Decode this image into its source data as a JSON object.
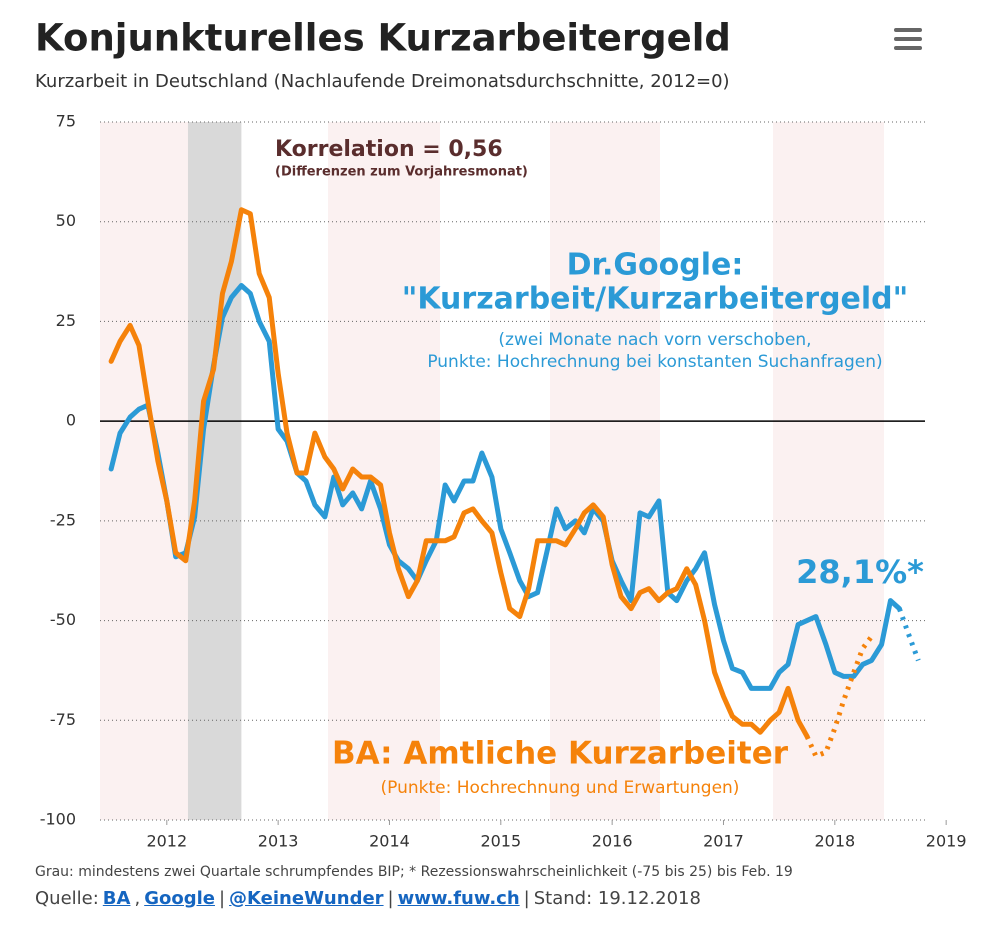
{
  "chart_data": {
    "type": "line",
    "title": "Konjunkturelles Kurzarbeitergeld",
    "subtitle": "Kurzarbeit in Deutschland (Nachlaufende Dreimonatsdurchschnitte, 2012=0)",
    "xlim": [
      2011.4,
      2018.81
    ],
    "xticks": [
      2012,
      2013,
      2014,
      2015,
      2016,
      2017,
      2018,
      2019
    ],
    "ylim": [
      -100,
      75
    ],
    "yticks": [
      75,
      50,
      25,
      0,
      -25,
      -50,
      -75,
      -100
    ],
    "grid": true,
    "shaded": [
      2012.19,
      2012.67
    ],
    "series": [
      {
        "color": "#2b9ad6",
        "style": "solid",
        "x": [
          2011.5,
          2011.58,
          2011.67,
          2011.75,
          2011.83,
          2011.92,
          2012,
          2012.08,
          2012.17,
          2012.25,
          2012.33,
          2012.42,
          2012.5,
          2012.58,
          2012.67,
          2012.75,
          2012.83,
          2012.92,
          2013,
          2013.08,
          2013.17,
          2013.25,
          2013.33,
          2013.42,
          2013.5,
          2013.58,
          2013.67,
          2013.75,
          2013.83,
          2013.92,
          2014,
          2014.08,
          2014.17,
          2014.25,
          2014.33,
          2014.42,
          2014.5,
          2014.58,
          2014.67,
          2014.75,
          2014.83,
          2014.92,
          2015,
          2015.08,
          2015.17,
          2015.25,
          2015.33,
          2015.42,
          2015.5,
          2015.58,
          2015.67,
          2015.75,
          2015.83,
          2015.92,
          2016,
          2016.08,
          2016.17,
          2016.25,
          2016.33,
          2016.42,
          2016.5,
          2016.58,
          2016.67,
          2016.75,
          2016.83,
          2016.92,
          2017,
          2017.08,
          2017.17,
          2017.25,
          2017.33,
          2017.42,
          2017.5,
          2017.58,
          2017.67,
          2017.75,
          2017.83,
          2017.92,
          2018,
          2018.08,
          2018.17,
          2018.25,
          2018.33,
          2018.42,
          2018.5,
          2018.58
        ],
        "values": [
          -12,
          -3,
          1,
          3,
          4,
          -8,
          -20,
          -34,
          -33,
          -24,
          -2,
          14,
          26,
          31,
          34,
          32,
          25,
          20,
          -2,
          -5,
          -13,
          -15,
          -21,
          -24,
          -14,
          -21,
          -18,
          -22,
          -15,
          -22,
          -31,
          -35,
          -37,
          -40,
          -35,
          -30,
          -16,
          -20,
          -15,
          -15,
          -8,
          -14,
          -27,
          -33,
          -40,
          -44,
          -43,
          -32,
          -22,
          -27,
          -25,
          -28,
          -22,
          -25,
          -35,
          -40,
          -45,
          -23,
          -24,
          -20,
          -43,
          -45,
          -40,
          -37,
          -33,
          -46,
          -55,
          -62,
          -63,
          -67,
          -67,
          -67,
          -63,
          -61,
          -51,
          -50,
          -49,
          -56,
          -63,
          -64,
          -64,
          -61,
          -60,
          -56,
          -45,
          -47
        ]
      },
      {
        "color": "#2b9ad6",
        "style": "dotted",
        "x": [
          2018.58,
          2018.67,
          2018.75
        ],
        "values": [
          -47,
          -54,
          -60
        ]
      },
      {
        "color": "#f5820a",
        "style": "solid",
        "x": [
          2011.5,
          2011.58,
          2011.67,
          2011.75,
          2011.83,
          2011.92,
          2012,
          2012.08,
          2012.17,
          2012.25,
          2012.33,
          2012.42,
          2012.5,
          2012.58,
          2012.67,
          2012.75,
          2012.83,
          2012.92,
          2013,
          2013.08,
          2013.17,
          2013.25,
          2013.33,
          2013.42,
          2013.5,
          2013.58,
          2013.67,
          2013.75,
          2013.83,
          2013.92,
          2014,
          2014.08,
          2014.17,
          2014.25,
          2014.33,
          2014.42,
          2014.5,
          2014.58,
          2014.67,
          2014.75,
          2014.83,
          2014.92,
          2015,
          2015.08,
          2015.17,
          2015.25,
          2015.33,
          2015.42,
          2015.5,
          2015.58,
          2015.67,
          2015.75,
          2015.83,
          2015.92,
          2016,
          2016.08,
          2016.17,
          2016.25,
          2016.33,
          2016.42,
          2016.5,
          2016.58,
          2016.67,
          2016.75,
          2016.83,
          2016.92,
          2017,
          2017.08,
          2017.17,
          2017.25,
          2017.33,
          2017.42,
          2017.5,
          2017.58,
          2017.67,
          2017.75
        ],
        "values": [
          15,
          20,
          24,
          19,
          5,
          -10,
          -20,
          -33,
          -35,
          -20,
          5,
          13,
          32,
          40,
          53,
          52,
          37,
          31,
          12,
          -3,
          -13,
          -13,
          -3,
          -9,
          -12,
          -17,
          -12,
          -14,
          -14,
          -16,
          -28,
          -37,
          -44,
          -40,
          -30,
          -30,
          -30,
          -29,
          -23,
          -22,
          -25,
          -28,
          -38,
          -47,
          -49,
          -42,
          -30,
          -30,
          -30,
          -31,
          -27,
          -23,
          -21,
          -24,
          -36,
          -44,
          -47,
          -43,
          -42,
          -45,
          -43,
          -42,
          -37,
          -41,
          -50,
          -63,
          -69,
          -74,
          -76,
          -76,
          -78,
          -75,
          -73,
          -67,
          -75,
          -79
        ]
      },
      {
        "color": "#f5820a",
        "style": "dotted",
        "x": [
          2017.75,
          2017.83,
          2017.92,
          2018,
          2018.08,
          2018.17,
          2018.25,
          2018.33
        ],
        "values": [
          -79,
          -84,
          -83,
          -77,
          -70,
          -63,
          -57,
          -54
        ]
      }
    ],
    "annotations": {
      "correlation": "Korrelation = 0,56",
      "correlation_note": "(Differenzen zum Vorjahresmonat)",
      "google_label": [
        "Dr.Google:",
        "\"Kurzarbeit/Kurzarbeitergeld\""
      ],
      "google_note": [
        "(zwei Monate nach vorn verschoben,",
        "Punkte: Hochrechnung bei konstanten Suchanfragen)"
      ],
      "google_value": "28,1%*",
      "ba_label": "BA: Amtliche Kurzarbeiter",
      "ba_note": "(Punkte: Hochrechnung und Erwartungen)"
    },
    "footnote": "Grau: mindestens zwei Quartale schrumpfendes BIP; * Rezessionswahrscheinlichkeit (-75 bis 25) bis Feb. 19",
    "source": [
      {
        "text": "Quelle:"
      },
      {
        "text": "BA",
        "link": true
      },
      {
        "text": ","
      },
      {
        "text": "Google",
        "link": true
      },
      {
        "text": "|"
      },
      {
        "text": "@KeineWunder",
        "link": true
      },
      {
        "text": "|"
      },
      {
        "text": "www.fuw.ch",
        "link": true
      },
      {
        "text": "|"
      },
      {
        "text": "Stand: 19.12.2018"
      }
    ]
  }
}
